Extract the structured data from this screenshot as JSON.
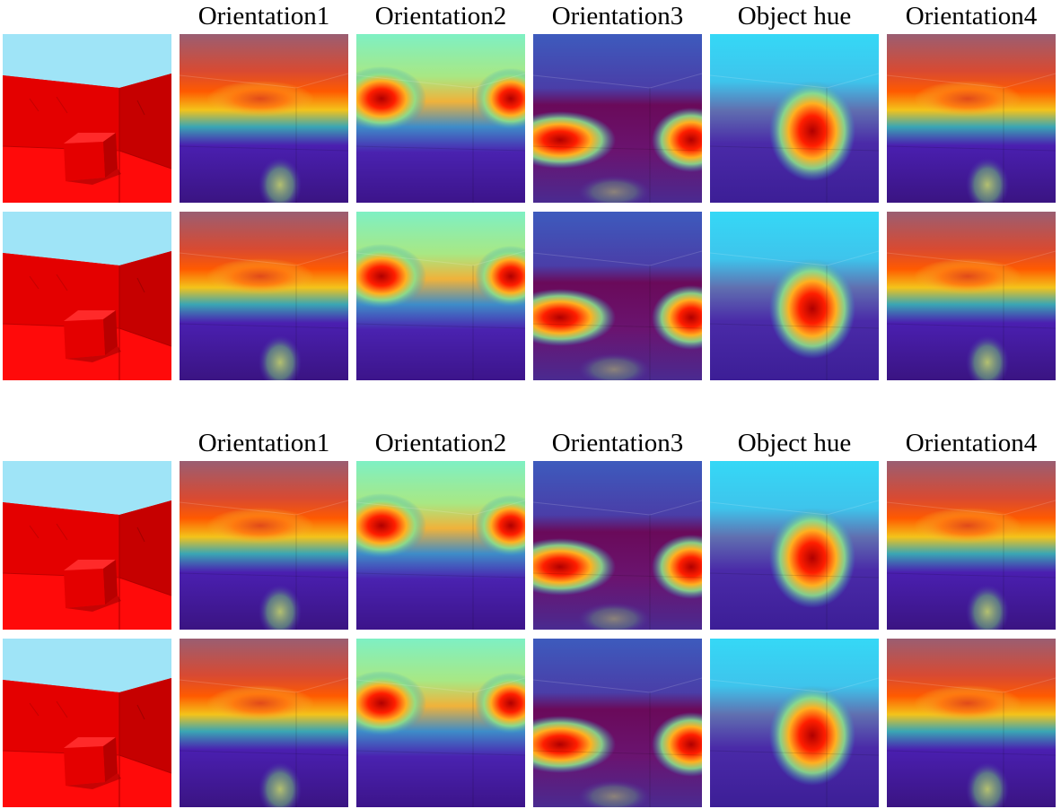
{
  "groups": [
    {
      "column_labels": [
        "Orientation1",
        "Orientation2",
        "Orientation3",
        "Object hue",
        "Orientation4"
      ]
    },
    {
      "column_labels": [
        "Orientation1",
        "Orientation2",
        "Orientation3",
        "Object hue",
        "Orientation4"
      ]
    }
  ]
}
